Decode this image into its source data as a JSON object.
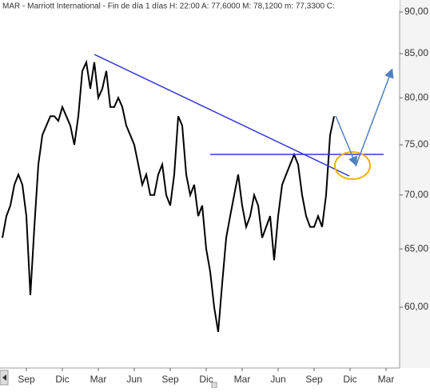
{
  "chart_data": {
    "type": "line",
    "title": "MAR - Marriott International - Fin de día 1 días  H: 22:00  A: 77,6000  M: 78,1200  m: 77,3300  C:",
    "log_scale": true,
    "color": "#000000",
    "categories": [
      null,
      null,
      null,
      null,
      null,
      null,
      "Sep",
      null,
      null,
      null,
      null,
      null,
      null,
      null,
      null,
      "Dic",
      null,
      null,
      null,
      null,
      null,
      null,
      null,
      null,
      "Mar",
      null,
      null,
      null,
      null,
      null,
      null,
      null,
      null,
      "Jun",
      null,
      null,
      null,
      null,
      null,
      null,
      null,
      null,
      "Sep",
      null,
      null,
      null,
      null,
      null,
      null,
      null,
      null,
      "Dic",
      null,
      null,
      null,
      null,
      null,
      null,
      null,
      null,
      "Mar",
      null,
      null,
      null,
      null,
      null,
      null,
      null,
      null,
      "Jun",
      null,
      null,
      null,
      null,
      null,
      null,
      null,
      null,
      "Sep",
      null,
      null,
      null,
      null,
      null,
      null,
      null,
      null,
      "Dic",
      null,
      null,
      null,
      null,
      null,
      null,
      null,
      null,
      "Mar",
      null,
      null,
      null
    ],
    "values": [
      66,
      68,
      69,
      71,
      72,
      71,
      68,
      61,
      67,
      73,
      76,
      77,
      78,
      78,
      77.5,
      79,
      78,
      77,
      75,
      78,
      83,
      84,
      81,
      84,
      80,
      81,
      83,
      79,
      79,
      80,
      79,
      77,
      76,
      75,
      73,
      71,
      72,
      70,
      70,
      72,
      73,
      70,
      69,
      72,
      78,
      77,
      72,
      70,
      71,
      68,
      69,
      65,
      63,
      60,
      58,
      62,
      66,
      68,
      70,
      72,
      69,
      67,
      68,
      70,
      69,
      66,
      67,
      68,
      64,
      68,
      71,
      72,
      73,
      74,
      73,
      70,
      68,
      67,
      67,
      68,
      67,
      70,
      76,
      78,
      null,
      null,
      null,
      null,
      null,
      null,
      null,
      null,
      null,
      null,
      null,
      null,
      null,
      null,
      null,
      null
    ],
    "ylim": [
      55.5,
      90.7
    ],
    "yticks": [
      {
        "value": 60,
        "label": "60,00"
      },
      {
        "value": 65,
        "label": "65,00"
      },
      {
        "value": 70,
        "label": "70,00"
      },
      {
        "value": 75,
        "label": "75,00"
      },
      {
        "value": 80,
        "label": "80,00"
      },
      {
        "value": 85,
        "label": "85,00"
      },
      {
        "value": 90,
        "label": "90,00"
      }
    ]
  }
}
